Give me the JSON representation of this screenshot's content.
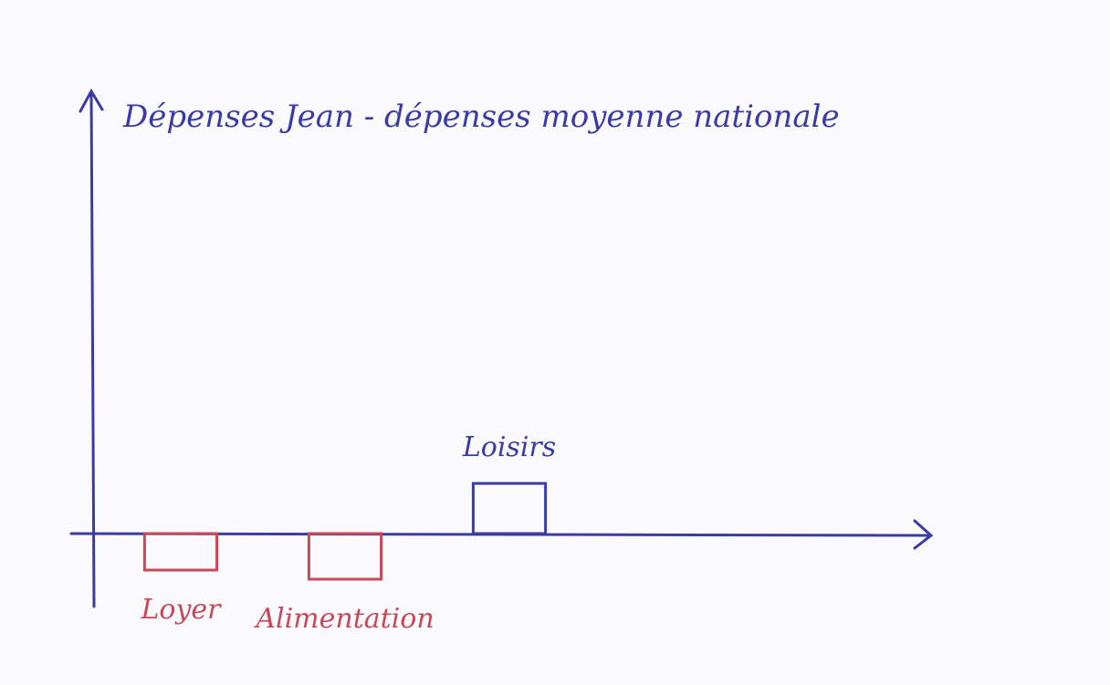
{
  "chart_data": {
    "type": "bar",
    "title": "Dépenses Jean - dépenses moyenne nationale",
    "categories": [
      "Loyer",
      "Alimentation",
      "Loisirs"
    ],
    "values": [
      -0.8,
      -1,
      1.1
    ],
    "colors": [
      "#c8485a",
      "#c8485a",
      "#3b3ba6"
    ],
    "axis_color": "#3b3ba6",
    "ylim": [
      -1.6,
      9.7
    ]
  }
}
